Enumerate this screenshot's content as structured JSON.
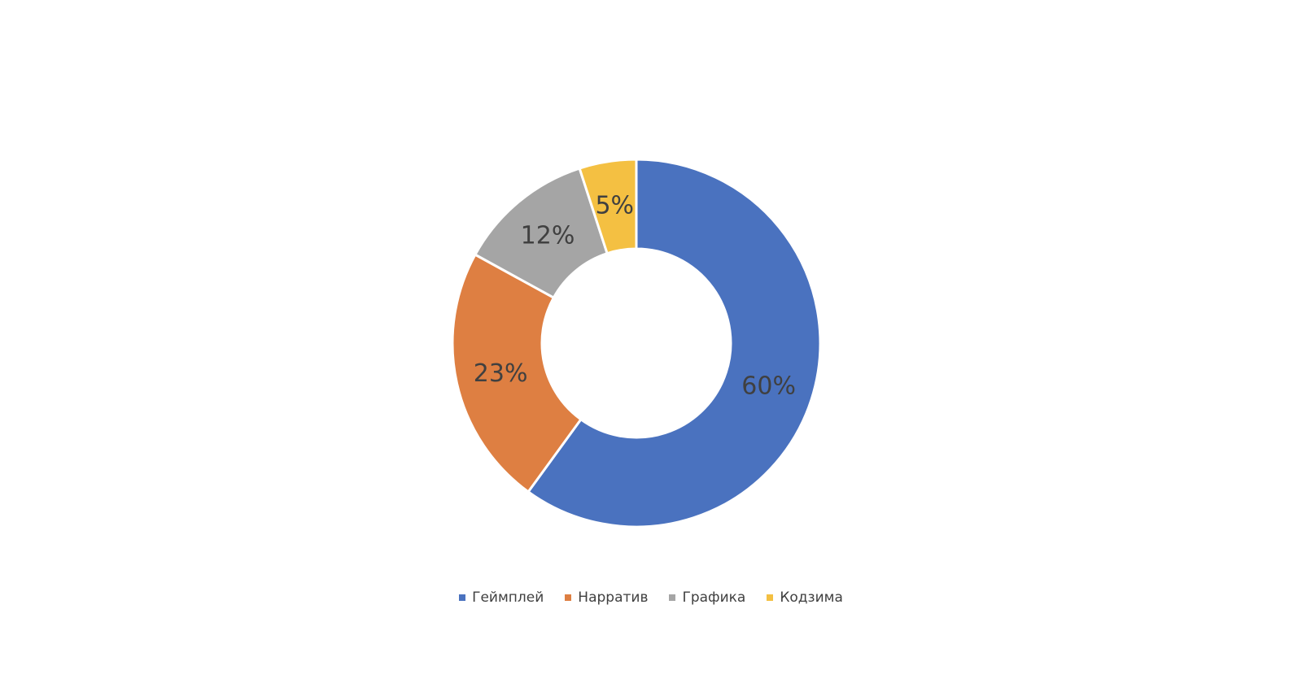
{
  "chart_data": {
    "type": "pie",
    "variant": "donut",
    "categories": [
      "Геймплей",
      "Нарратив",
      "Графика",
      "Кодзима"
    ],
    "values": [
      60,
      23,
      12,
      5
    ],
    "data_labels": [
      "60%",
      "23%",
      "12%",
      "5%"
    ],
    "colors": [
      "#4a72bf",
      "#de7f42",
      "#a5a5a5",
      "#f4c042"
    ],
    "title": "",
    "legend_position": "bottom"
  }
}
